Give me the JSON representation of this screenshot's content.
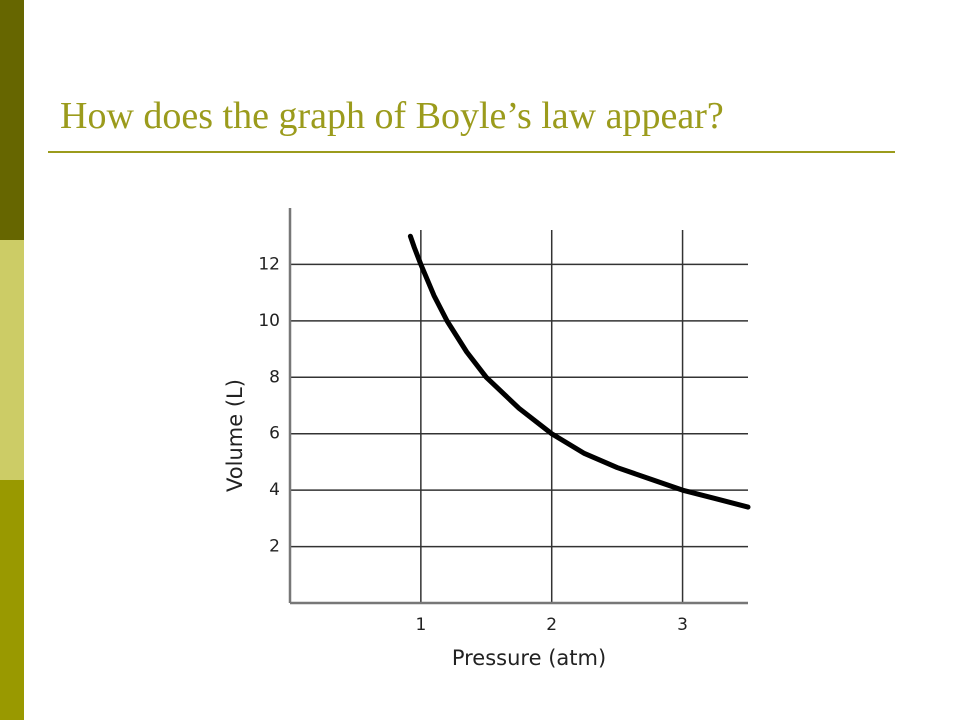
{
  "slide": {
    "title": "How does the graph of Boyle’s law appear?"
  },
  "chart_data": {
    "type": "line",
    "x": [
      0.92,
      0.95,
      1,
      1.1,
      1.2,
      1.35,
      1.5,
      1.75,
      2,
      2.25,
      2.5,
      2.75,
      3,
      3.25,
      3.5
    ],
    "series": [
      {
        "color": "#000000",
        "values": [
          13.0,
          12.6,
          12,
          10.9,
          10,
          8.9,
          8,
          6.9,
          6,
          5.3,
          4.8,
          4.4,
          4,
          3.7,
          3.4
        ]
      }
    ],
    "xlabel": "Pressure (atm)",
    "ylabel": "Volume (L)",
    "xlim": [
      0,
      3.5
    ],
    "ylim": [
      0,
      14
    ],
    "xticks": [
      1,
      2,
      3
    ],
    "yticks": [
      2,
      4,
      6,
      8,
      10,
      12
    ],
    "grid": true
  }
}
